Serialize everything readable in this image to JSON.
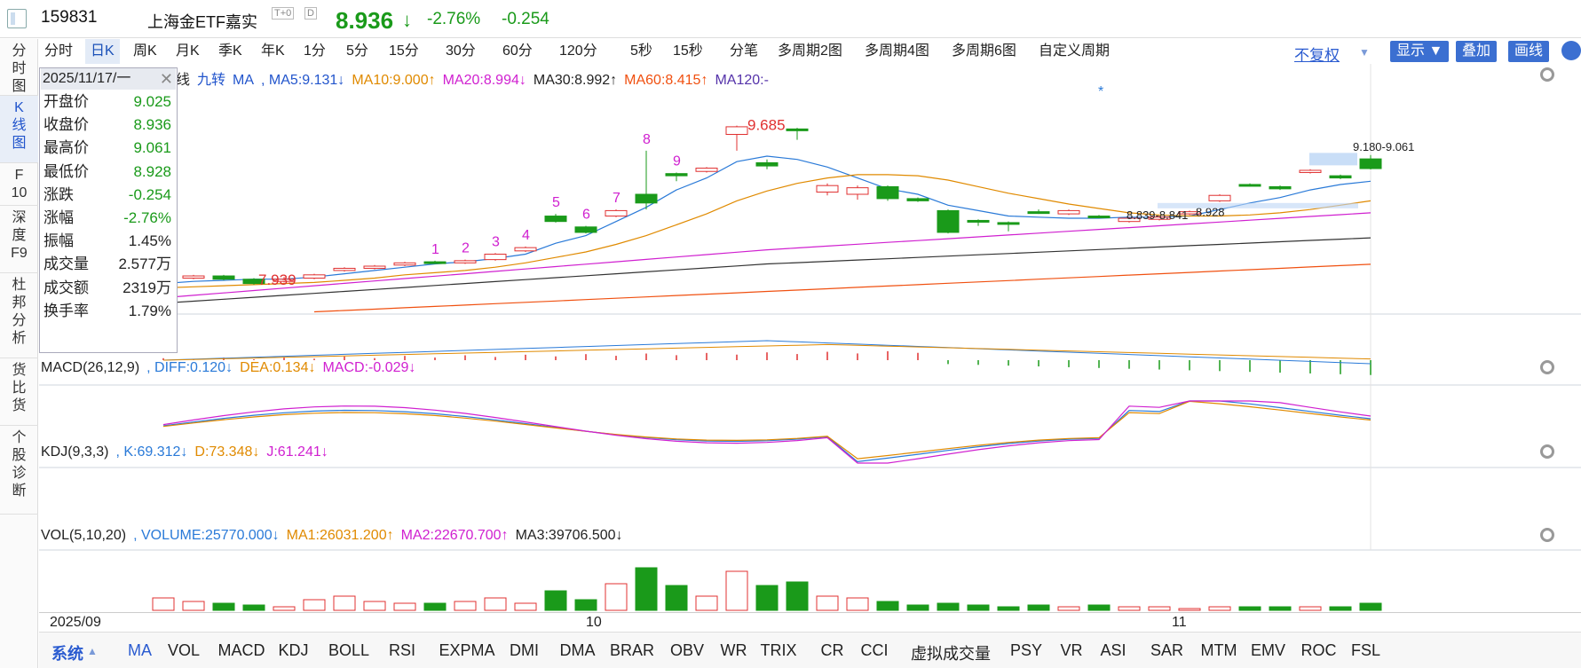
{
  "header": {
    "code": "159831",
    "name": "上海金ETF嘉实",
    "t0": "T+0",
    "d": "D",
    "price": "8.936",
    "price_arrow": "↓",
    "change_pct": "-2.76%",
    "change": "-0.254"
  },
  "left_nav": [
    {
      "label": "分\n时\n图"
    },
    {
      "label": "K\n线\n图"
    },
    {
      "label": "F\n10"
    },
    {
      "label": "深\n度\nF9"
    },
    {
      "label": "杜\n邦\n分\n析"
    },
    {
      "label": "货\n比\n货"
    },
    {
      "label": "个\n股\n诊\n断"
    }
  ],
  "period_tabs": [
    "分时",
    "日K",
    "周K",
    "月K",
    "季K",
    "年K",
    "1分",
    "5分",
    "15分",
    "30分",
    "60分",
    "120分",
    "5秒",
    "15秒",
    "分笔",
    "多周期2图",
    "多周期4图",
    "多周期6图",
    "自定义周期"
  ],
  "right_controls": {
    "adjust": "不复权",
    "show": "显示",
    "overlay": "叠加",
    "draw": "画线"
  },
  "info_box": {
    "date": "2025/11/17/一",
    "rows": [
      {
        "k": "开盘价",
        "v": "9.025",
        "c": "#1a9a1a"
      },
      {
        "k": "收盘价",
        "v": "8.936",
        "c": "#1a9a1a"
      },
      {
        "k": "最高价",
        "v": "9.061",
        "c": "#1a9a1a"
      },
      {
        "k": "最低价",
        "v": "8.928",
        "c": "#1a9a1a"
      },
      {
        "k": "涨跌",
        "v": "-0.254",
        "c": "#1a9a1a"
      },
      {
        "k": "涨幅",
        "v": "-2.76%",
        "c": "#1a9a1a"
      },
      {
        "k": "振幅",
        "v": "1.45%",
        "c": "#222"
      },
      {
        "k": "成交量",
        "v": "2.577万",
        "c": "#222"
      },
      {
        "k": "成交额",
        "v": "2319万",
        "c": "#222"
      },
      {
        "k": "换手率",
        "v": "1.79%",
        "c": "#222"
      }
    ]
  },
  "ma_legend": [
    {
      "t": "线",
      "c": "#222"
    },
    {
      "t": "九转",
      "c": "#2255cc"
    },
    {
      "t": "MA",
      "c": "#2255cc"
    },
    {
      "t": ", MA5:9.131↓",
      "c": "#2255cc"
    },
    {
      "t": "MA10:9.000↑",
      "c": "#e08a00"
    },
    {
      "t": "MA20:8.994↓",
      "c": "#d020d0"
    },
    {
      "t": "MA30:8.992↑",
      "c": "#222"
    },
    {
      "t": "MA60:8.415↑",
      "c": "#f05010"
    },
    {
      "t": "MA120:-",
      "c": "#5533aa"
    }
  ],
  "macd_legend": [
    {
      "t": "MACD(26,12,9)",
      "c": "#222"
    },
    {
      "t": ", DIFF:0.120↓",
      "c": "#2a7ad8"
    },
    {
      "t": "DEA:0.134↓",
      "c": "#e08a00"
    },
    {
      "t": "MACD:-0.029↓",
      "c": "#d020d0"
    }
  ],
  "kdj_legend": [
    {
      "t": "KDJ(9,3,3)",
      "c": "#222"
    },
    {
      "t": ", K:69.312↓",
      "c": "#2a7ad8"
    },
    {
      "t": "D:73.348↓",
      "c": "#e08a00"
    },
    {
      "t": "J:61.241↓",
      "c": "#d020d0"
    }
  ],
  "vol_legend": [
    {
      "t": "VOL(5,10,20)",
      "c": "#222"
    },
    {
      "t": ", VOLUME:25770.000↓",
      "c": "#2a7ad8"
    },
    {
      "t": "MA1:26031.200↑",
      "c": "#e08a00"
    },
    {
      "t": "MA2:22670.700↑",
      "c": "#d020d0"
    },
    {
      "t": "MA3:39706.500↓",
      "c": "#222"
    }
  ],
  "annotations": {
    "low": "7.939",
    "high": "9.685",
    "range_right": "9.180-9.061",
    "range_mid1": "8.839-8.841",
    "range_mid2": "8.928",
    "star": "*",
    "td_counts": [
      "1",
      "2",
      "3",
      "4",
      "5",
      "6",
      "7",
      "8",
      "9"
    ]
  },
  "x_labels": [
    "2025/09",
    "10",
    "11"
  ],
  "bottom_indicators": [
    "系统",
    "MA",
    "VOL",
    "MACD",
    "KDJ",
    "BOLL",
    "RSI",
    "EXPMA",
    "DMI",
    "DMA",
    "BRAR",
    "OBV",
    "WR",
    "TRIX",
    "CR",
    "CCI",
    "虚拟成交量",
    "PSY",
    "VR",
    "ASI",
    "SAR",
    "MTM",
    "EMV",
    "ROC",
    "FSL"
  ],
  "chart_data": {
    "type": "candlestick",
    "period": "日K",
    "candles": [
      {
        "o": 7.87,
        "c": 7.91,
        "h": 7.92,
        "l": 7.86
      },
      {
        "o": 7.93,
        "c": 7.95,
        "h": 7.96,
        "l": 7.92
      },
      {
        "o": 7.95,
        "c": 7.92,
        "h": 7.96,
        "l": 7.91
      },
      {
        "o": 7.92,
        "c": 7.88,
        "h": 7.93,
        "l": 7.87
      },
      {
        "o": 7.9,
        "c": 7.92,
        "h": 7.94,
        "l": 7.89
      },
      {
        "o": 7.93,
        "c": 7.96,
        "h": 7.97,
        "l": 7.92
      },
      {
        "o": 8.0,
        "c": 8.02,
        "h": 8.03,
        "l": 7.99
      },
      {
        "o": 8.02,
        "c": 8.04,
        "h": 8.05,
        "l": 8.01
      },
      {
        "o": 8.05,
        "c": 8.07,
        "h": 8.08,
        "l": 8.04
      },
      {
        "o": 8.08,
        "c": 8.07,
        "h": 8.09,
        "l": 8.06
      },
      {
        "o": 8.07,
        "c": 8.09,
        "h": 8.1,
        "l": 8.06
      },
      {
        "o": 8.1,
        "c": 8.15,
        "h": 8.16,
        "l": 8.09
      },
      {
        "o": 8.18,
        "c": 8.21,
        "h": 8.22,
        "l": 8.17
      },
      {
        "o": 8.5,
        "c": 8.45,
        "h": 8.52,
        "l": 8.44
      },
      {
        "o": 8.4,
        "c": 8.35,
        "h": 8.41,
        "l": 8.34
      },
      {
        "o": 8.5,
        "c": 8.55,
        "h": 8.56,
        "l": 8.49
      },
      {
        "o": 8.7,
        "c": 8.62,
        "h": 9.1,
        "l": 8.56
      },
      {
        "o": 8.89,
        "c": 8.87,
        "h": 8.9,
        "l": 8.82
      },
      {
        "o": 8.91,
        "c": 8.94,
        "h": 8.95,
        "l": 8.9
      },
      {
        "o": 9.25,
        "c": 9.32,
        "h": 9.33,
        "l": 9.1
      },
      {
        "o": 8.99,
        "c": 8.96,
        "h": 9.02,
        "l": 8.93
      },
      {
        "o": 9.3,
        "c": 9.29,
        "h": 9.31,
        "l": 9.2
      },
      {
        "o": 8.72,
        "c": 8.78,
        "h": 8.8,
        "l": 8.69
      },
      {
        "o": 8.7,
        "c": 8.76,
        "h": 8.78,
        "l": 8.65
      },
      {
        "o": 8.77,
        "c": 8.66,
        "h": 8.78,
        "l": 8.64
      },
      {
        "o": 8.66,
        "c": 8.64,
        "h": 8.67,
        "l": 8.63
      },
      {
        "o": 8.55,
        "c": 8.35,
        "h": 8.56,
        "l": 8.34
      },
      {
        "o": 8.46,
        "c": 8.45,
        "h": 8.47,
        "l": 8.41
      },
      {
        "o": 8.44,
        "c": 8.43,
        "h": 8.45,
        "l": 8.36
      },
      {
        "o": 8.54,
        "c": 8.53,
        "h": 8.56,
        "l": 8.52
      },
      {
        "o": 8.52,
        "c": 8.55,
        "h": 8.56,
        "l": 8.51
      },
      {
        "o": 8.5,
        "c": 8.49,
        "h": 8.51,
        "l": 8.48
      },
      {
        "o": 8.45,
        "c": 8.48,
        "h": 8.49,
        "l": 8.44
      },
      {
        "o": 8.47,
        "c": 8.49,
        "h": 8.5,
        "l": 8.46
      },
      {
        "o": 8.52,
        "c": 8.54,
        "h": 8.55,
        "l": 8.51
      },
      {
        "o": 8.64,
        "c": 8.69,
        "h": 8.7,
        "l": 8.63
      },
      {
        "o": 8.79,
        "c": 8.78,
        "h": 8.8,
        "l": 8.77
      },
      {
        "o": 8.77,
        "c": 8.75,
        "h": 8.78,
        "l": 8.74
      },
      {
        "o": 8.9,
        "c": 8.92,
        "h": 8.93,
        "l": 8.89
      },
      {
        "o": 8.87,
        "c": 8.85,
        "h": 8.88,
        "l": 8.84
      },
      {
        "o": 9.025,
        "c": 8.936,
        "h": 9.061,
        "l": 8.928
      }
    ],
    "ma": {
      "MA5": [
        7.88,
        7.9,
        7.91,
        7.92,
        7.92,
        7.94,
        7.97,
        8.0,
        8.03,
        8.06,
        8.08,
        8.11,
        8.15,
        8.25,
        8.32,
        8.45,
        8.58,
        8.74,
        8.85,
        9.0,
        9.05,
        9.02,
        8.95,
        8.85,
        8.75,
        8.7,
        8.6,
        8.55,
        8.5,
        8.49,
        8.48,
        8.48,
        8.49,
        8.49,
        8.5,
        8.56,
        8.62,
        8.67,
        8.74,
        8.79,
        8.82
      ],
      "MA10": [
        7.84,
        7.85,
        7.86,
        7.87,
        7.88,
        7.89,
        7.91,
        7.93,
        7.96,
        7.98,
        8.0,
        8.03,
        8.07,
        8.12,
        8.17,
        8.24,
        8.32,
        8.42,
        8.52,
        8.64,
        8.73,
        8.8,
        8.85,
        8.88,
        8.88,
        8.87,
        8.83,
        8.77,
        8.71,
        8.66,
        8.61,
        8.57,
        8.53,
        8.51,
        8.5,
        8.5,
        8.51,
        8.53,
        8.56,
        8.6,
        8.64
      ]
    }
  }
}
